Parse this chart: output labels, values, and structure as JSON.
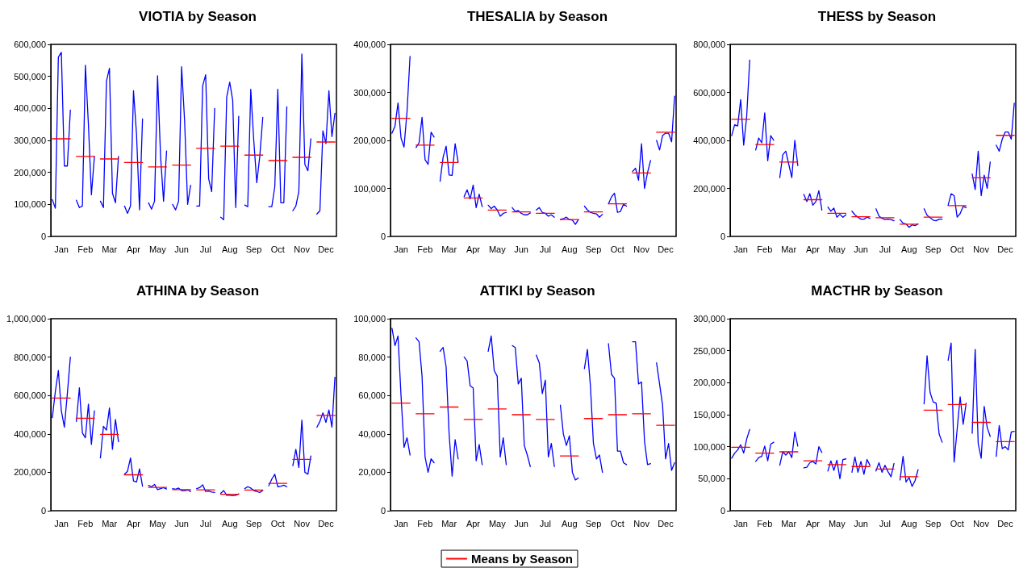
{
  "chart_data": [
    {
      "type": "line",
      "title": "VIOTIA by Season",
      "marker": "none",
      "line_style": "solid",
      "grid": false,
      "categories": [
        null,
        null,
        null,
        "Jan",
        null,
        null,
        null,
        null,
        null,
        null,
        null,
        "Feb",
        null,
        null,
        null,
        null,
        null,
        null,
        null,
        "Mar",
        null,
        null,
        null,
        null,
        null,
        null,
        null,
        "Apr",
        null,
        null,
        null,
        null,
        null,
        null,
        null,
        "May",
        null,
        null,
        null,
        null,
        null,
        null,
        null,
        "Jun",
        null,
        null,
        null,
        null,
        null,
        null,
        null,
        "Jul",
        null,
        null,
        null,
        null,
        null,
        null,
        null,
        "Aug",
        null,
        null,
        null,
        null,
        null,
        null,
        null,
        "Sep",
        null,
        null,
        null,
        null,
        null,
        null,
        null,
        "Oct",
        null,
        null,
        null,
        null,
        null,
        null,
        null,
        "Nov",
        null,
        null,
        null,
        null,
        null,
        null,
        null,
        "Dec",
        null,
        null,
        null
      ],
      "ylim": [
        0,
        600000
      ],
      "yticks": [
        {
          "value": 0,
          "label": "0"
        },
        {
          "value": 100000,
          "label": "100,000"
        },
        {
          "value": 200000,
          "label": "200,000"
        },
        {
          "value": 300000,
          "label": "300,000"
        },
        {
          "value": 400000,
          "label": "400,000"
        },
        {
          "value": 500000,
          "label": "500,000"
        },
        {
          "value": 600000,
          "label": "600,000"
        }
      ],
      "series": [
        {
          "color": "#0000ff",
          "values": [
            115000,
            88000,
            560000,
            575000,
            220000,
            220000,
            395000,
            null,
            113000,
            90000,
            95000,
            535000,
            350000,
            130000,
            250000,
            null,
            110000,
            90000,
            485000,
            525000,
            135000,
            105000,
            250000,
            null,
            95000,
            72000,
            95000,
            455000,
            320000,
            83000,
            367000,
            null,
            105000,
            85000,
            110000,
            502000,
            250000,
            110000,
            267000,
            null,
            100000,
            83000,
            110000,
            530000,
            360000,
            100000,
            160000,
            null,
            95000,
            95000,
            470000,
            505000,
            180000,
            140000,
            400000,
            null,
            60000,
            52000,
            435000,
            482000,
            425000,
            90000,
            375000,
            null,
            98000,
            93000,
            460000,
            300000,
            168000,
            250000,
            372000,
            null,
            93000,
            93000,
            155000,
            460000,
            105000,
            105000,
            405000,
            null,
            80000,
            95000,
            140000,
            570000,
            225000,
            205000,
            305000,
            null,
            70000,
            80000,
            330000,
            290000,
            455000,
            312000,
            385000
          ]
        },
        {
          "color": "#ff0000",
          "values": [
            305000,
            305000,
            305000,
            305000,
            305000,
            305000,
            305000,
            null,
            250000,
            250000,
            250000,
            250000,
            250000,
            250000,
            250000,
            null,
            242000,
            242000,
            242000,
            242000,
            242000,
            242000,
            242000,
            null,
            231000,
            231000,
            231000,
            231000,
            231000,
            231000,
            231000,
            null,
            217000,
            217000,
            217000,
            217000,
            217000,
            217000,
            217000,
            null,
            223000,
            223000,
            223000,
            223000,
            223000,
            223000,
            223000,
            null,
            275000,
            275000,
            275000,
            275000,
            275000,
            275000,
            275000,
            null,
            282000,
            282000,
            282000,
            282000,
            282000,
            282000,
            282000,
            null,
            254000,
            254000,
            254000,
            254000,
            254000,
            254000,
            254000,
            null,
            237000,
            237000,
            237000,
            237000,
            237000,
            237000,
            237000,
            null,
            247000,
            247000,
            247000,
            247000,
            247000,
            247000,
            247000,
            null,
            295000,
            295000,
            295000,
            295000,
            295000,
            295000,
            295000
          ]
        }
      ]
    },
    {
      "type": "line",
      "title": "THESALIA by Season",
      "marker": "none",
      "line_style": "solid",
      "grid": false,
      "categories": [
        null,
        null,
        null,
        "Jan",
        null,
        null,
        null,
        null,
        null,
        null,
        null,
        "Feb",
        null,
        null,
        null,
        null,
        null,
        null,
        null,
        "Mar",
        null,
        null,
        null,
        null,
        null,
        null,
        null,
        "Apr",
        null,
        null,
        null,
        null,
        null,
        null,
        null,
        "May",
        null,
        null,
        null,
        null,
        null,
        null,
        null,
        "Jun",
        null,
        null,
        null,
        null,
        null,
        null,
        null,
        "Jul",
        null,
        null,
        null,
        null,
        null,
        null,
        null,
        "Aug",
        null,
        null,
        null,
        null,
        null,
        null,
        null,
        "Sep",
        null,
        null,
        null,
        null,
        null,
        null,
        null,
        "Oct",
        null,
        null,
        null,
        null,
        null,
        null,
        null,
        "Nov",
        null,
        null,
        null,
        null,
        null,
        null,
        null,
        "Dec",
        null,
        null,
        null
      ],
      "ylim": [
        0,
        400000
      ],
      "yticks": [
        {
          "value": 0,
          "label": "0"
        },
        {
          "value": 100000,
          "label": "100,000"
        },
        {
          "value": 200000,
          "label": "200,000"
        },
        {
          "value": 300000,
          "label": "300,000"
        },
        {
          "value": 400000,
          "label": "400,000"
        }
      ],
      "series": [
        {
          "color": "#0000ff",
          "values": [
            215000,
            230000,
            278000,
            205000,
            186000,
            260000,
            375000,
            null,
            185000,
            195000,
            248000,
            160000,
            150000,
            217000,
            207000,
            null,
            115000,
            165000,
            188000,
            128000,
            127000,
            193000,
            155000,
            null,
            83000,
            97000,
            78000,
            107000,
            60000,
            88000,
            62000,
            null,
            65000,
            58000,
            63000,
            55000,
            42000,
            48000,
            50000,
            null,
            60000,
            52000,
            54000,
            48000,
            45000,
            45000,
            49000,
            null,
            55000,
            60000,
            50000,
            48000,
            42000,
            45000,
            40000,
            null,
            35000,
            37000,
            40000,
            35000,
            34000,
            25000,
            35000,
            null,
            63000,
            55000,
            50000,
            48000,
            47000,
            40000,
            46000,
            null,
            68000,
            82000,
            90000,
            50000,
            52000,
            67000,
            63000,
            null,
            135000,
            142000,
            117000,
            193000,
            100000,
            133000,
            158000,
            null,
            200000,
            180000,
            210000,
            215000,
            215000,
            197000,
            292000
          ]
        },
        {
          "color": "#ff0000",
          "values": [
            246000,
            246000,
            246000,
            246000,
            246000,
            246000,
            246000,
            null,
            190000,
            190000,
            190000,
            190000,
            190000,
            190000,
            190000,
            null,
            154000,
            154000,
            154000,
            154000,
            154000,
            154000,
            154000,
            null,
            80000,
            80000,
            80000,
            80000,
            80000,
            80000,
            80000,
            null,
            55000,
            55000,
            55000,
            55000,
            55000,
            55000,
            55000,
            null,
            51000,
            51000,
            51000,
            51000,
            51000,
            51000,
            51000,
            null,
            48000,
            48000,
            48000,
            48000,
            48000,
            48000,
            48000,
            null,
            35000,
            35000,
            35000,
            35000,
            35000,
            35000,
            35000,
            null,
            51000,
            51000,
            51000,
            51000,
            51000,
            51000,
            51000,
            null,
            68000,
            68000,
            68000,
            68000,
            68000,
            68000,
            68000,
            null,
            132000,
            132000,
            132000,
            132000,
            132000,
            132000,
            132000,
            null,
            217000,
            217000,
            217000,
            217000,
            217000,
            217000,
            217000
          ]
        }
      ]
    },
    {
      "type": "line",
      "title": "THESS by Season",
      "marker": "none",
      "line_style": "solid",
      "grid": false,
      "categories": [
        null,
        null,
        null,
        "Jan",
        null,
        null,
        null,
        null,
        null,
        null,
        null,
        "Feb",
        null,
        null,
        null,
        null,
        null,
        null,
        null,
        "Mar",
        null,
        null,
        null,
        null,
        null,
        null,
        null,
        "Apr",
        null,
        null,
        null,
        null,
        null,
        null,
        null,
        "May",
        null,
        null,
        null,
        null,
        null,
        null,
        null,
        "Jun",
        null,
        null,
        null,
        null,
        null,
        null,
        null,
        "Jul",
        null,
        null,
        null,
        null,
        null,
        null,
        null,
        "Aug",
        null,
        null,
        null,
        null,
        null,
        null,
        null,
        "Sep",
        null,
        null,
        null,
        null,
        null,
        null,
        null,
        "Oct",
        null,
        null,
        null,
        null,
        null,
        null,
        null,
        "Nov",
        null,
        null,
        null,
        null,
        null,
        null,
        null,
        "Dec",
        null,
        null,
        null
      ],
      "ylim": [
        0,
        800000
      ],
      "yticks": [
        {
          "value": 0,
          "label": "0"
        },
        {
          "value": 200000,
          "label": "200,000"
        },
        {
          "value": 400000,
          "label": "400,000"
        },
        {
          "value": 600000,
          "label": "600,000"
        },
        {
          "value": 800000,
          "label": "800,000"
        }
      ],
      "series": [
        {
          "color": "#0000ff",
          "values": [
            420000,
            465000,
            460000,
            570000,
            380000,
            500000,
            735000,
            null,
            360000,
            410000,
            390000,
            515000,
            315000,
            420000,
            400000,
            null,
            245000,
            340000,
            355000,
            300000,
            245000,
            400000,
            295000,
            null,
            175000,
            145000,
            178000,
            130000,
            145000,
            190000,
            110000,
            null,
            122000,
            105000,
            118000,
            80000,
            92000,
            80000,
            90000,
            null,
            105000,
            90000,
            80000,
            72000,
            72000,
            80000,
            75000,
            null,
            115000,
            85000,
            75000,
            70000,
            72000,
            70000,
            65000,
            null,
            70000,
            55000,
            52000,
            38000,
            48000,
            45000,
            52000,
            null,
            115000,
            88000,
            78000,
            68000,
            65000,
            72000,
            72000,
            null,
            130000,
            178000,
            170000,
            80000,
            95000,
            125000,
            120000,
            null,
            260000,
            195000,
            355000,
            170000,
            255000,
            200000,
            310000,
            null,
            380000,
            355000,
            405000,
            435000,
            435000,
            405000,
            555000
          ]
        },
        {
          "color": "#ff0000",
          "values": [
            488000,
            488000,
            488000,
            488000,
            488000,
            488000,
            488000,
            null,
            383000,
            383000,
            383000,
            383000,
            383000,
            383000,
            383000,
            null,
            310000,
            310000,
            310000,
            310000,
            310000,
            310000,
            310000,
            null,
            153000,
            153000,
            153000,
            153000,
            153000,
            153000,
            153000,
            null,
            96000,
            96000,
            96000,
            96000,
            96000,
            96000,
            96000,
            null,
            82000,
            82000,
            82000,
            82000,
            82000,
            82000,
            82000,
            null,
            78000,
            78000,
            78000,
            78000,
            78000,
            78000,
            78000,
            null,
            51000,
            51000,
            51000,
            51000,
            51000,
            51000,
            51000,
            null,
            80000,
            80000,
            80000,
            80000,
            80000,
            80000,
            80000,
            null,
            128000,
            128000,
            128000,
            128000,
            128000,
            128000,
            128000,
            null,
            244000,
            244000,
            244000,
            244000,
            244000,
            244000,
            244000,
            null,
            421000,
            421000,
            421000,
            421000,
            421000,
            421000,
            421000
          ]
        }
      ]
    },
    {
      "type": "line",
      "title": "ATHINA by Season",
      "marker": "none",
      "line_style": "solid",
      "grid": false,
      "categories": [
        null,
        null,
        null,
        "Jan",
        null,
        null,
        null,
        null,
        null,
        null,
        null,
        "Feb",
        null,
        null,
        null,
        null,
        null,
        null,
        null,
        "Mar",
        null,
        null,
        null,
        null,
        null,
        null,
        null,
        "Apr",
        null,
        null,
        null,
        null,
        null,
        null,
        null,
        "May",
        null,
        null,
        null,
        null,
        null,
        null,
        null,
        "Jun",
        null,
        null,
        null,
        null,
        null,
        null,
        null,
        "Jul",
        null,
        null,
        null,
        null,
        null,
        null,
        null,
        "Aug",
        null,
        null,
        null,
        null,
        null,
        null,
        null,
        "Sep",
        null,
        null,
        null,
        null,
        null,
        null,
        null,
        "Oct",
        null,
        null,
        null,
        null,
        null,
        null,
        null,
        "Nov",
        null,
        null,
        null,
        null,
        null,
        null,
        null,
        "Dec",
        null,
        null,
        null
      ],
      "ylim": [
        0,
        1000000
      ],
      "yticks": [
        {
          "value": 0,
          "label": "0"
        },
        {
          "value": 200000,
          "label": "200,000"
        },
        {
          "value": 400000,
          "label": "400,000"
        },
        {
          "value": 600000,
          "label": "600,000"
        },
        {
          "value": 800000,
          "label": "800,000"
        },
        {
          "value": 1000000,
          "label": "1,000,000"
        }
      ],
      "series": [
        {
          "color": "#0000ff",
          "values": [
            485000,
            620000,
            730000,
            520000,
            435000,
            610000,
            800000,
            null,
            465000,
            640000,
            405000,
            380000,
            555000,
            345000,
            520000,
            null,
            275000,
            440000,
            420000,
            535000,
            320000,
            475000,
            360000,
            null,
            190000,
            205000,
            275000,
            155000,
            150000,
            218000,
            128000,
            null,
            132000,
            125000,
            137000,
            110000,
            115000,
            120000,
            113000,
            null,
            115000,
            112000,
            118000,
            105000,
            105000,
            108000,
            100000,
            null,
            115000,
            120000,
            135000,
            100000,
            102000,
            97000,
            95000,
            null,
            90000,
            105000,
            80000,
            80000,
            78000,
            80000,
            88000,
            null,
            115000,
            125000,
            118000,
            105000,
            100000,
            95000,
            105000,
            null,
            130000,
            165000,
            190000,
            125000,
            128000,
            133000,
            125000,
            null,
            235000,
            320000,
            225000,
            472000,
            200000,
            190000,
            285000,
            null,
            435000,
            465000,
            510000,
            460000,
            525000,
            435000,
            695000
          ]
        },
        {
          "color": "#ff0000",
          "values": [
            587000,
            587000,
            587000,
            587000,
            587000,
            587000,
            587000,
            null,
            482000,
            482000,
            482000,
            482000,
            482000,
            482000,
            482000,
            null,
            398000,
            398000,
            398000,
            398000,
            398000,
            398000,
            398000,
            null,
            187000,
            187000,
            187000,
            187000,
            187000,
            187000,
            187000,
            null,
            121000,
            121000,
            121000,
            121000,
            121000,
            121000,
            121000,
            null,
            110000,
            110000,
            110000,
            110000,
            110000,
            110000,
            110000,
            null,
            109000,
            109000,
            109000,
            109000,
            109000,
            109000,
            109000,
            null,
            86000,
            86000,
            86000,
            86000,
            86000,
            86000,
            86000,
            null,
            108000,
            108000,
            108000,
            108000,
            108000,
            108000,
            108000,
            null,
            142000,
            142000,
            142000,
            142000,
            142000,
            142000,
            142000,
            null,
            267000,
            267000,
            267000,
            267000,
            267000,
            267000,
            267000,
            null,
            496000,
            496000,
            496000,
            496000,
            496000,
            496000,
            496000
          ]
        }
      ]
    },
    {
      "type": "line",
      "title": "ATTIKI by Season",
      "marker": "none",
      "line_style": "solid",
      "grid": false,
      "legend": "bottom",
      "categories": [
        null,
        null,
        null,
        "Jan",
        null,
        null,
        null,
        null,
        null,
        null,
        null,
        "Feb",
        null,
        null,
        null,
        null,
        null,
        null,
        null,
        "Mar",
        null,
        null,
        null,
        null,
        null,
        null,
        null,
        "Apr",
        null,
        null,
        null,
        null,
        null,
        null,
        null,
        "May",
        null,
        null,
        null,
        null,
        null,
        null,
        null,
        "Jun",
        null,
        null,
        null,
        null,
        null,
        null,
        null,
        "Jul",
        null,
        null,
        null,
        null,
        null,
        null,
        null,
        "Aug",
        null,
        null,
        null,
        null,
        null,
        null,
        null,
        "Sep",
        null,
        null,
        null,
        null,
        null,
        null,
        null,
        "Oct",
        null,
        null,
        null,
        null,
        null,
        null,
        null,
        "Nov",
        null,
        null,
        null,
        null,
        null,
        null,
        null,
        "Dec",
        null,
        null,
        null
      ],
      "ylim": [
        0,
        100000
      ],
      "yticks": [
        {
          "value": 0,
          "label": "0"
        },
        {
          "value": 20000,
          "label": "20,000"
        },
        {
          "value": 40000,
          "label": "40,000"
        },
        {
          "value": 60000,
          "label": "60,000"
        },
        {
          "value": 80000,
          "label": "80,000"
        },
        {
          "value": 100000,
          "label": "100,000"
        }
      ],
      "series": [
        {
          "color": "#0000ff",
          "values": [
            95000,
            86000,
            91000,
            60000,
            33000,
            38000,
            29000,
            null,
            90000,
            88000,
            70000,
            28000,
            20000,
            27000,
            25000,
            null,
            83000,
            85000,
            75000,
            40000,
            18000,
            37000,
            27000,
            null,
            80000,
            78000,
            65000,
            64000,
            26000,
            34500,
            24000,
            null,
            83000,
            91000,
            73000,
            70000,
            28000,
            38000,
            24000,
            null,
            86000,
            85000,
            66000,
            69000,
            34000,
            29000,
            23000,
            null,
            81000,
            77000,
            61000,
            68000,
            28000,
            35000,
            23000,
            null,
            55000,
            40000,
            34000,
            39000,
            20000,
            16000,
            17000,
            null,
            74000,
            84000,
            65000,
            35000,
            27000,
            29000,
            20000,
            null,
            87000,
            71000,
            69000,
            31000,
            31000,
            25000,
            24000,
            null,
            88000,
            88000,
            66000,
            67000,
            36000,
            24000,
            24500,
            null,
            77000,
            66000,
            55000,
            27000,
            35000,
            21000,
            25000
          ]
        },
        {
          "name": "Means by Season",
          "color": "#ff0000",
          "values": [
            56000,
            56000,
            56000,
            56000,
            56000,
            56000,
            56000,
            null,
            50500,
            50500,
            50500,
            50500,
            50500,
            50500,
            50500,
            null,
            54000,
            54000,
            54000,
            54000,
            54000,
            54000,
            54000,
            null,
            47500,
            47500,
            47500,
            47500,
            47500,
            47500,
            47500,
            null,
            53000,
            53000,
            53000,
            53000,
            53000,
            53000,
            53000,
            null,
            50000,
            50000,
            50000,
            50000,
            50000,
            50000,
            50000,
            null,
            47500,
            47500,
            47500,
            47500,
            47500,
            47500,
            47500,
            null,
            28500,
            28500,
            28500,
            28500,
            28500,
            28500,
            28500,
            null,
            48000,
            48000,
            48000,
            48000,
            48000,
            48000,
            48000,
            null,
            50000,
            50000,
            50000,
            50000,
            50000,
            50000,
            50000,
            null,
            50500,
            50500,
            50500,
            50500,
            50500,
            50500,
            50500,
            null,
            44500,
            44500,
            44500,
            44500,
            44500,
            44500,
            44500
          ]
        }
      ]
    },
    {
      "type": "line",
      "title": "MACTHR by Season",
      "marker": "none",
      "line_style": "solid",
      "grid": false,
      "categories": [
        null,
        null,
        null,
        "Jan",
        null,
        null,
        null,
        null,
        null,
        null,
        null,
        "Feb",
        null,
        null,
        null,
        null,
        null,
        null,
        null,
        "Mar",
        null,
        null,
        null,
        null,
        null,
        null,
        null,
        "Apr",
        null,
        null,
        null,
        null,
        null,
        null,
        null,
        "May",
        null,
        null,
        null,
        null,
        null,
        null,
        null,
        "Jun",
        null,
        null,
        null,
        null,
        null,
        null,
        null,
        "Jul",
        null,
        null,
        null,
        null,
        null,
        null,
        null,
        "Aug",
        null,
        null,
        null,
        null,
        null,
        null,
        null,
        "Sep",
        null,
        null,
        null,
        null,
        null,
        null,
        null,
        "Oct",
        null,
        null,
        null,
        null,
        null,
        null,
        null,
        "Nov",
        null,
        null,
        null,
        null,
        null,
        null,
        null,
        "Dec",
        null,
        null,
        null
      ],
      "ylim": [
        0,
        300000
      ],
      "yticks": [
        {
          "value": 0,
          "label": "0"
        },
        {
          "value": 50000,
          "label": "50,000"
        },
        {
          "value": 100000,
          "label": "100,000"
        },
        {
          "value": 150000,
          "label": "150,000"
        },
        {
          "value": 200000,
          "label": "200,000"
        },
        {
          "value": 250000,
          "label": "250,000"
        },
        {
          "value": 300000,
          "label": "300,000"
        }
      ],
      "series": [
        {
          "color": "#0000ff",
          "values": [
            82000,
            90000,
            95000,
            103000,
            90000,
            112000,
            127000,
            null,
            77000,
            83000,
            85000,
            101000,
            78000,
            104000,
            107000,
            null,
            71000,
            92000,
            87000,
            92000,
            83000,
            123000,
            101000,
            null,
            67000,
            68000,
            75000,
            77000,
            73000,
            100000,
            91000,
            null,
            62000,
            78000,
            63000,
            79000,
            50000,
            80000,
            81000,
            null,
            60000,
            84000,
            60000,
            77000,
            57000,
            80000,
            71000,
            null,
            62000,
            75000,
            60000,
            71000,
            61000,
            53000,
            74000,
            null,
            48000,
            85000,
            45000,
            52000,
            38000,
            47000,
            64000,
            null,
            167000,
            242000,
            185000,
            170000,
            168000,
            120000,
            107000,
            null,
            235000,
            262000,
            76000,
            127000,
            178000,
            135000,
            168000,
            null,
            121000,
            252000,
            105000,
            82000,
            163000,
            130000,
            116000,
            null,
            85000,
            133000,
            97000,
            100000,
            95000,
            123000,
            124000
          ]
        },
        {
          "color": "#ff0000",
          "values": [
            99000,
            99000,
            99000,
            99000,
            99000,
            99000,
            99000,
            null,
            90000,
            90000,
            90000,
            90000,
            90000,
            90000,
            90000,
            null,
            92000,
            92000,
            92000,
            92000,
            92000,
            92000,
            92000,
            null,
            78000,
            78000,
            78000,
            78000,
            78000,
            78000,
            78000,
            null,
            72000,
            72000,
            72000,
            72000,
            72000,
            72000,
            72000,
            null,
            69000,
            69000,
            69000,
            69000,
            69000,
            69000,
            69000,
            null,
            65000,
            65000,
            65000,
            65000,
            65000,
            65000,
            65000,
            null,
            53000,
            53000,
            53000,
            53000,
            53000,
            53000,
            53000,
            null,
            157000,
            157000,
            157000,
            157000,
            157000,
            157000,
            157000,
            null,
            166000,
            166000,
            166000,
            166000,
            166000,
            166000,
            166000,
            null,
            138000,
            138000,
            138000,
            138000,
            138000,
            138000,
            138000,
            null,
            108000,
            108000,
            108000,
            108000,
            108000,
            108000,
            108000
          ]
        }
      ]
    }
  ]
}
